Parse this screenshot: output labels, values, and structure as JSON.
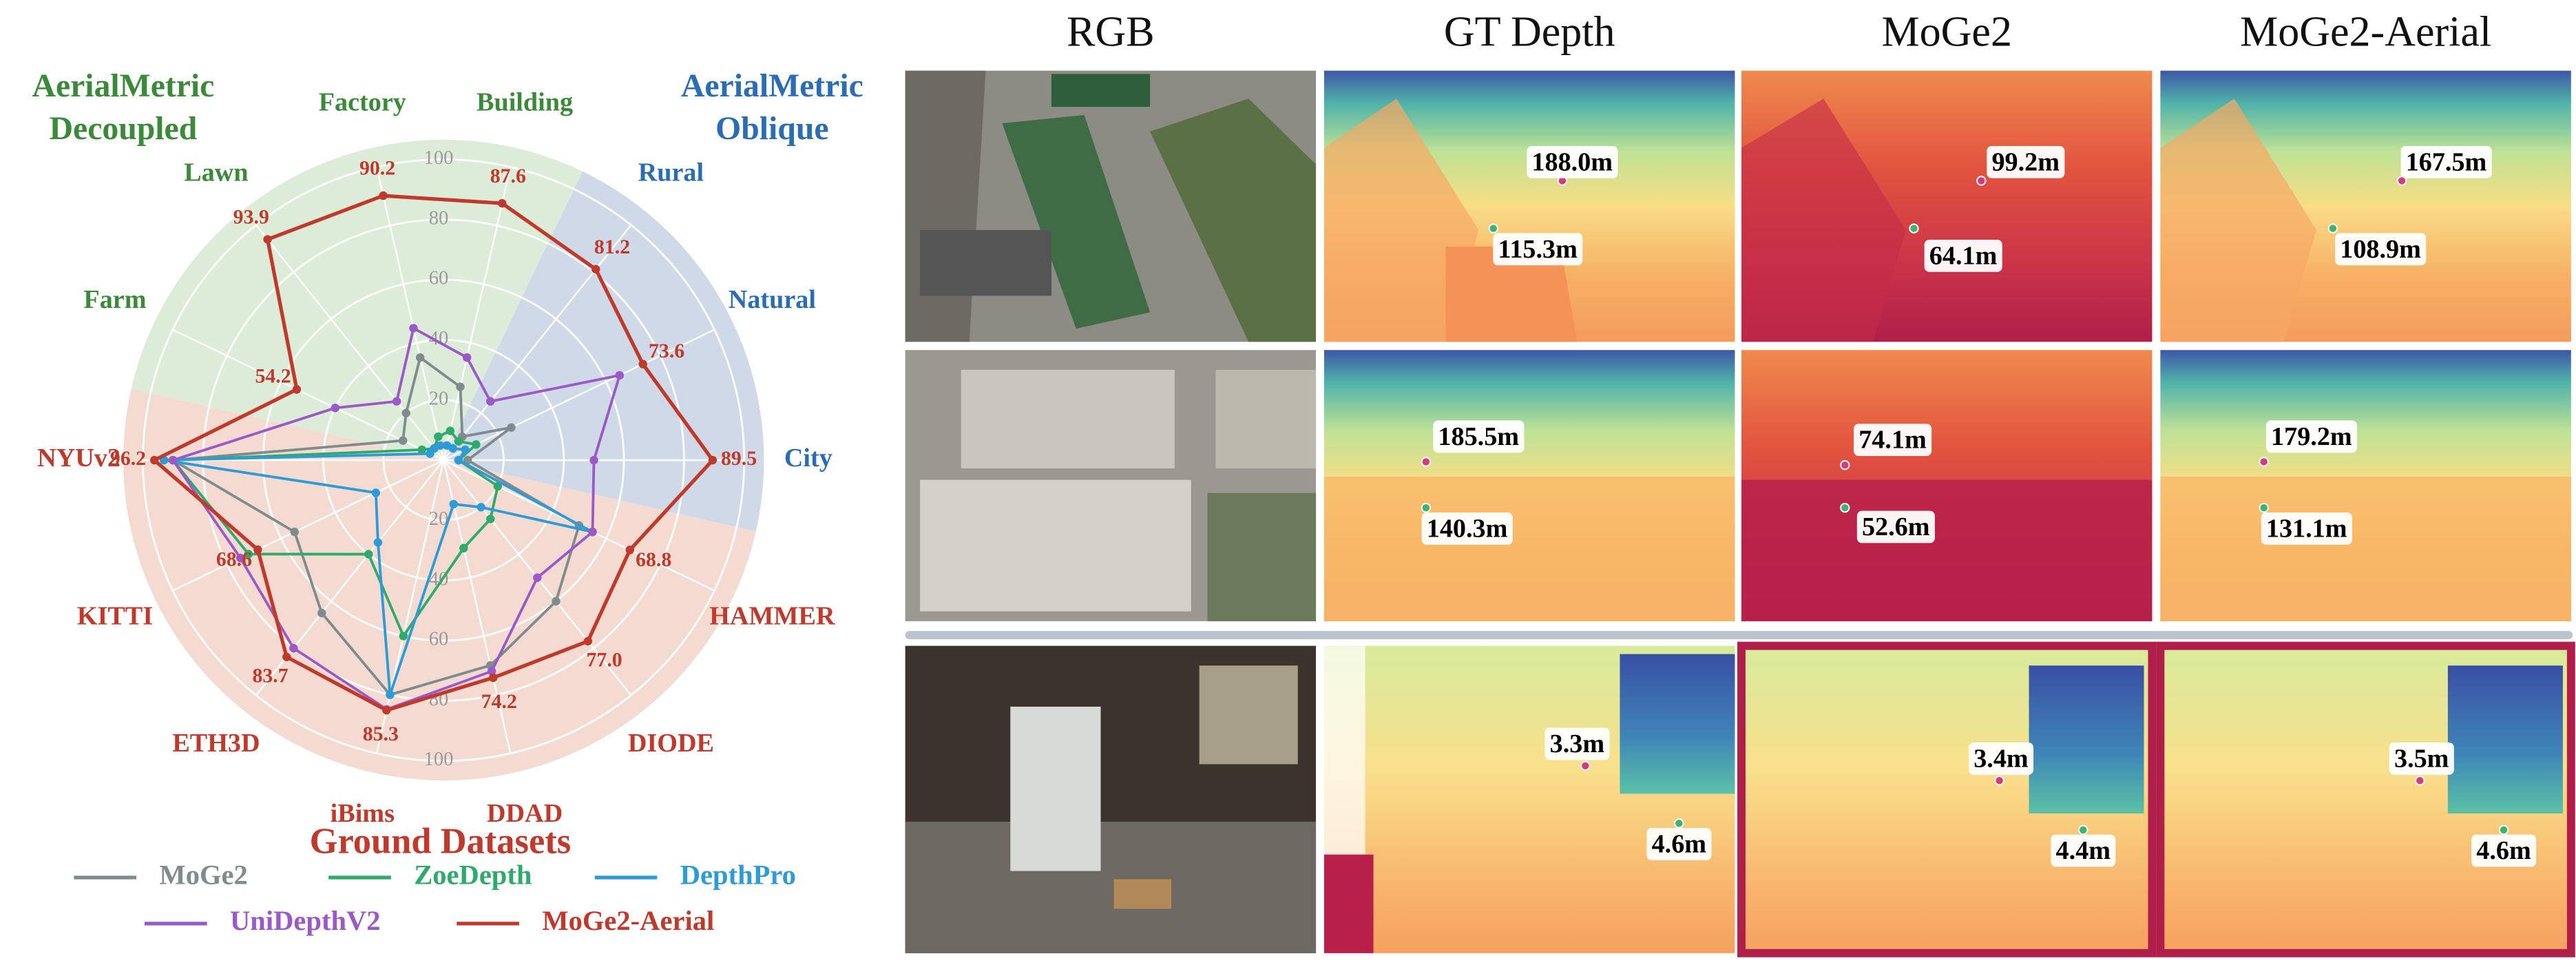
{
  "chart_data": {
    "type": "radar",
    "categories": [
      "Factory",
      "Building",
      "Rural",
      "Natural",
      "City",
      "HAMMER",
      "DIODE",
      "DDAD",
      "iBims",
      "ETH3D",
      "KITTI",
      "NYUv2",
      "Farm",
      "Lawn"
    ],
    "ylim": [
      0,
      100
    ],
    "yticks": [
      20,
      40,
      60,
      80,
      100
    ],
    "groups": [
      {
        "title": [
          "AerialMetric",
          "Decoupled"
        ],
        "color": "#3a8a3a",
        "background": "#dcecd8",
        "categories": [
          12,
          13,
          0,
          1
        ]
      },
      {
        "title": [
          "AerialMetric",
          "Oblique"
        ],
        "color": "#2a6db5",
        "background": "#d0d9e8",
        "categories": [
          2,
          3,
          4
        ]
      },
      {
        "title": [
          "Ground Datasets"
        ],
        "color": "#c0392b",
        "background": "#f3dbd2",
        "categories": [
          5,
          6,
          7,
          8,
          9,
          10,
          11
        ]
      }
    ],
    "series": [
      {
        "name": "MoGe2",
        "color": "#7f8c8d",
        "values": [
          35,
          25,
          10,
          25,
          8,
          50,
          60,
          70,
          80,
          65,
          55,
          90,
          15,
          20
        ]
      },
      {
        "name": "ZoeDepth",
        "color": "#2eaa6a",
        "values": [
          8,
          10,
          8,
          12,
          5,
          20,
          25,
          30,
          60,
          40,
          72,
          90,
          8,
          5
        ]
      },
      {
        "name": "DepthPro",
        "color": "#2f9bd6",
        "values": [
          5,
          5,
          5,
          8,
          5,
          55,
          20,
          15,
          80,
          35,
          25,
          93,
          5,
          5
        ]
      },
      {
        "name": "UniDepthV2",
        "color": "#9b59c8",
        "values": [
          45,
          35,
          25,
          65,
          50,
          55,
          50,
          72,
          85,
          80,
          75,
          90,
          40,
          25
        ]
      },
      {
        "name": "MoGe2-Aerial",
        "color": "#c0392b",
        "values": [
          90.2,
          87.6,
          81.2,
          73.6,
          89.5,
          68.8,
          77.0,
          74.2,
          85.3,
          83.7,
          68.6,
          96.2,
          54.2,
          93.9
        ],
        "value_labels": [
          "90.2",
          "87.6",
          "81.2",
          "73.6",
          "89.5",
          "68.8",
          "77.0",
          "74.2",
          "85.3",
          "83.7",
          "68.6",
          "96.2",
          "54.2",
          "93.9"
        ]
      }
    ]
  },
  "image_grid": {
    "columns": [
      "RGB",
      "GT Depth",
      "MoGe2",
      "MoGe2-Aerial"
    ],
    "rows": [
      {
        "cells": [
          [
            "188.0m",
            "115.3m"
          ],
          [
            "99.2m",
            "64.1m"
          ],
          [
            "167.5m",
            "108.9m"
          ]
        ]
      },
      {
        "cells": [
          [
            "185.5m",
            "140.3m"
          ],
          [
            "74.1m",
            "52.6m"
          ],
          [
            "179.2m",
            "131.1m"
          ]
        ]
      },
      {
        "cells": [
          [
            "3.3m",
            "4.6m"
          ],
          [
            "3.4m",
            "4.4m"
          ],
          [
            "3.5m",
            "4.6m"
          ]
        ]
      }
    ]
  }
}
